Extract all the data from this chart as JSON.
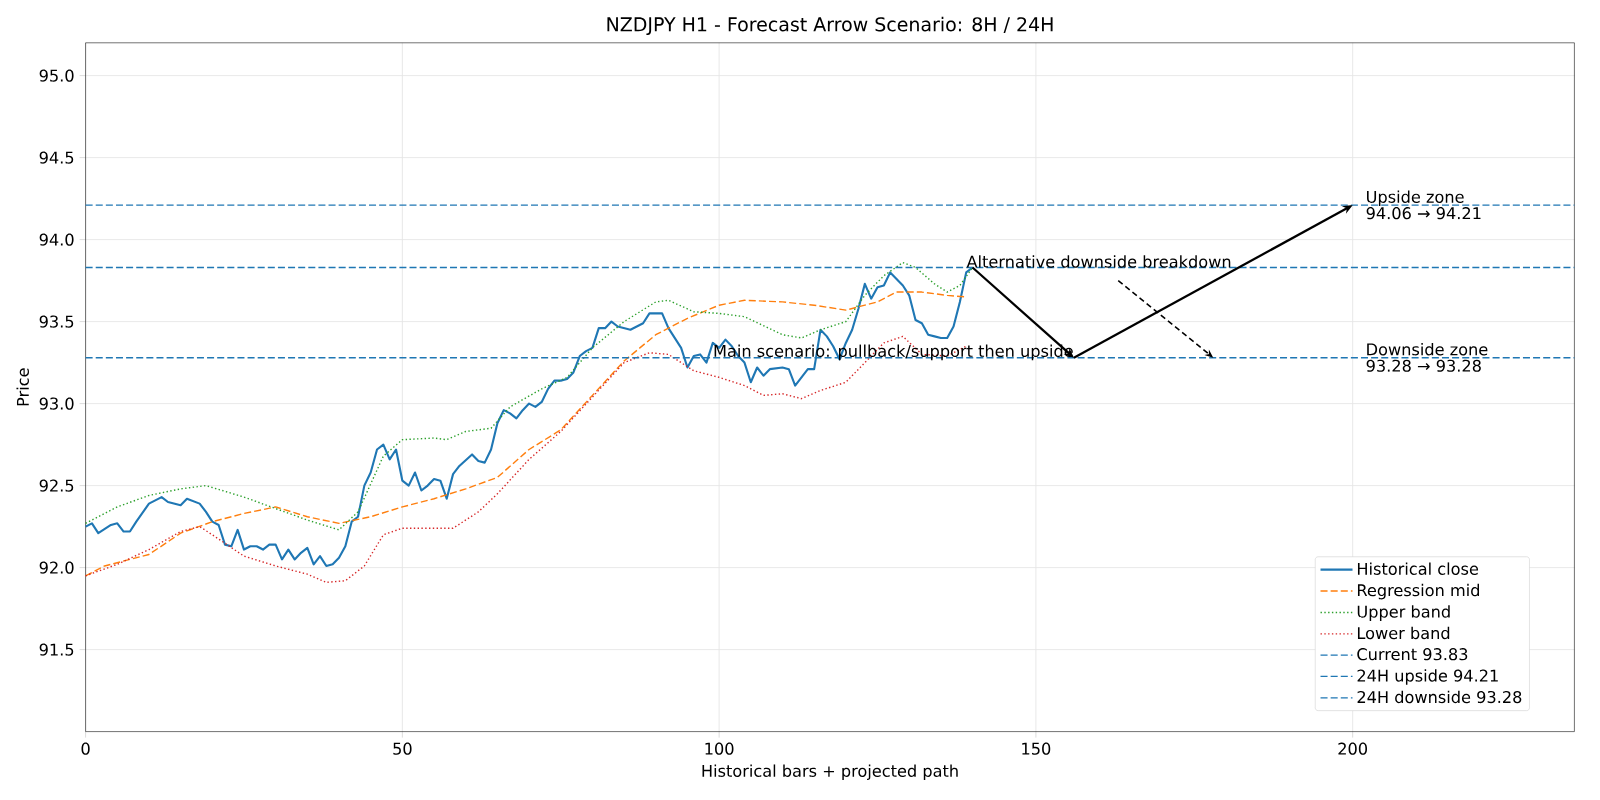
{
  "chart_data": {
    "type": "line",
    "title": "NZDJPY H1 - Forecast Arrow Scenario: 8H / 24H",
    "xlabel": "Historical bars + projected path",
    "ylabel": "Price",
    "xlim": [
      0,
      235
    ],
    "ylim": [
      91.0,
      95.2
    ],
    "xticks": [
      0,
      50,
      100,
      150,
      200
    ],
    "yticks": [
      91.5,
      {
        "value": 92.0,
        "label": "92.0"
      },
      92.5,
      {
        "value": 93.0,
        "label": "93.0"
      },
      93.5,
      {
        "value": 94.0,
        "label": "94.0"
      },
      94.5,
      {
        "value": 95.0,
        "label": "95.0"
      }
    ],
    "grid": true,
    "legend": "bottom right",
    "series": [
      {
        "name": "Historical close",
        "color": "#1f77b4",
        "line_style": "solid",
        "x": [
          0,
          1,
          2,
          4,
          5,
          6,
          7,
          8,
          10,
          12,
          13,
          15,
          16,
          18,
          19,
          20,
          21,
          22,
          23,
          24,
          25,
          26,
          27,
          28,
          29,
          30,
          31,
          32,
          33,
          34,
          35,
          36,
          37,
          38,
          39,
          40,
          41,
          42,
          43,
          44,
          45,
          46,
          47,
          48,
          49,
          50,
          51,
          52,
          53,
          54,
          55,
          56,
          57,
          58,
          59,
          61,
          62,
          63,
          64,
          65,
          66,
          67,
          68,
          69,
          70,
          71,
          72,
          73,
          74,
          75,
          76,
          77,
          78,
          79,
          80,
          81,
          82,
          83,
          84,
          86,
          88,
          89,
          91,
          92,
          94,
          95,
          96,
          97,
          98,
          99,
          100,
          101,
          102,
          103,
          104,
          105,
          106,
          107,
          108,
          110,
          111,
          112,
          113,
          114,
          115,
          116,
          117,
          118,
          119,
          120,
          121,
          122,
          123,
          124,
          125,
          126,
          127,
          129,
          130,
          131,
          132,
          133,
          134,
          135,
          136,
          137,
          138,
          139,
          140
        ],
        "values": [
          92.25,
          92.27,
          92.21,
          92.26,
          92.27,
          92.22,
          92.22,
          92.28,
          92.39,
          92.43,
          92.4,
          92.38,
          92.42,
          92.39,
          92.34,
          92.28,
          92.26,
          92.14,
          92.13,
          92.23,
          92.11,
          92.13,
          92.13,
          92.11,
          92.14,
          92.14,
          92.05,
          92.11,
          92.05,
          92.09,
          92.12,
          92.02,
          92.07,
          92.01,
          92.02,
          92.06,
          92.13,
          92.28,
          92.31,
          92.5,
          92.58,
          92.72,
          92.75,
          92.66,
          92.72,
          92.53,
          92.5,
          92.58,
          92.47,
          92.5,
          92.54,
          92.53,
          92.42,
          92.57,
          92.62,
          92.69,
          92.65,
          92.64,
          92.72,
          92.88,
          92.96,
          92.94,
          92.91,
          92.96,
          93.0,
          92.98,
          93.01,
          93.09,
          93.14,
          93.14,
          93.15,
          93.19,
          93.29,
          93.32,
          93.34,
          93.46,
          93.46,
          93.5,
          93.47,
          93.45,
          93.49,
          93.55,
          93.55,
          93.46,
          93.34,
          93.22,
          93.29,
          93.3,
          93.25,
          93.37,
          93.34,
          93.39,
          93.35,
          93.29,
          93.25,
          93.13,
          93.22,
          93.17,
          93.21,
          93.22,
          93.21,
          93.11,
          93.16,
          93.21,
          93.21,
          93.45,
          93.41,
          93.35,
          93.27,
          93.37,
          93.45,
          93.58,
          93.73,
          93.64,
          93.71,
          93.72,
          93.8,
          93.72,
          93.66,
          93.51,
          93.49,
          93.42,
          93.41,
          93.4,
          93.4,
          93.47,
          93.62,
          93.8,
          93.83
        ]
      },
      {
        "name": "Regression mid",
        "color": "#ff7f0e",
        "line_style": "dashed",
        "x": [
          0,
          3,
          10,
          15,
          20,
          25,
          30,
          35,
          40,
          45,
          50,
          55,
          60,
          65,
          70,
          75,
          80,
          85,
          90,
          95,
          100,
          104,
          110,
          115,
          120,
          125,
          128,
          132,
          136,
          139
        ],
        "values": [
          91.95,
          92.01,
          92.08,
          92.21,
          92.28,
          92.33,
          92.37,
          92.31,
          92.27,
          92.31,
          92.37,
          92.42,
          92.48,
          92.55,
          92.72,
          92.84,
          93.05,
          93.26,
          93.42,
          93.52,
          93.6,
          93.63,
          93.62,
          93.6,
          93.57,
          93.62,
          93.68,
          93.68,
          93.66,
          93.65
        ]
      },
      {
        "name": "Upper band",
        "color": "#2ca02c",
        "line_style": "dotted",
        "x": [
          0,
          5,
          10,
          15,
          19,
          25,
          30,
          35,
          40,
          43,
          47,
          50,
          55,
          57,
          60,
          64,
          67,
          72,
          76,
          80,
          85,
          90,
          92,
          96,
          100,
          104,
          110,
          113,
          116,
          120,
          123,
          126,
          129,
          131,
          134,
          136,
          138,
          140
        ],
        "values": [
          92.27,
          92.37,
          92.44,
          92.48,
          92.5,
          92.43,
          92.36,
          92.29,
          92.23,
          92.34,
          92.68,
          92.78,
          92.79,
          92.78,
          92.83,
          92.85,
          92.98,
          93.09,
          93.16,
          93.34,
          93.5,
          93.62,
          93.63,
          93.56,
          93.55,
          93.53,
          93.42,
          93.4,
          93.45,
          93.5,
          93.66,
          93.78,
          93.86,
          93.83,
          93.73,
          93.68,
          93.72,
          93.83
        ]
      },
      {
        "name": "Lower band",
        "color": "#d62728",
        "line_style": "dotted",
        "x": [
          0,
          5,
          10,
          15,
          18,
          20,
          25,
          30,
          35,
          38,
          41,
          44,
          47,
          50,
          55,
          58,
          62,
          65,
          70,
          75,
          80,
          85,
          89,
          92,
          96,
          100,
          104,
          107,
          110,
          113,
          116,
          120,
          123,
          126,
          129,
          132,
          136,
          139
        ],
        "values": [
          91.95,
          92.02,
          92.11,
          92.22,
          92.25,
          92.2,
          92.07,
          92.01,
          91.96,
          91.91,
          91.92,
          92.01,
          92.2,
          92.24,
          92.24,
          92.24,
          92.34,
          92.45,
          92.66,
          92.83,
          93.04,
          93.25,
          93.31,
          93.3,
          93.2,
          93.16,
          93.11,
          93.05,
          93.06,
          93.03,
          93.08,
          93.13,
          93.25,
          93.37,
          93.41,
          93.3,
          93.29,
          93.35
        ]
      }
    ],
    "ref_lines": [
      {
        "axis": "y",
        "value": 93.83,
        "label": "Current 93.83",
        "color": "#1f77b4",
        "line_style": "dashed"
      },
      {
        "axis": "y",
        "value": 94.21,
        "label": "24H upside 94.21",
        "color": "#1f77b4",
        "line_style": "dashed"
      },
      {
        "axis": "y",
        "value": 93.28,
        "label": "24H downside 93.28",
        "color": "#1f77b4",
        "line_style": "dashed"
      }
    ],
    "annotations": [
      {
        "text": "Main scenario: pullback/support then upside",
        "x": 156,
        "y": 93.28
      },
      {
        "text": "Alternative downside breakdown",
        "x": 140,
        "y": 93.83
      },
      {
        "text": "Upside zone",
        "x": 200,
        "y": 94.21
      },
      "94.06 → 94.21",
      {
        "text": "Downside zone",
        "x": 200,
        "y": 93.28
      },
      "93.28 → 93.28"
    ]
  }
}
